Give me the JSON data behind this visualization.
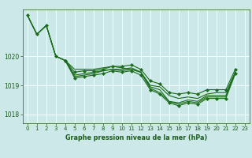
{
  "background_color": "#cce8e8",
  "grid_color": "#ffffff",
  "line_color": "#1a6b1a",
  "marker_color": "#1a6b1a",
  "xlabel": "Graphe pression niveau de la mer (hPa)",
  "xlabel_color": "#1a5c1a",
  "tick_color": "#1a5c1a",
  "ylim": [
    1017.7,
    1021.6
  ],
  "xlim": [
    -0.5,
    23.5
  ],
  "yticks": [
    1018,
    1019,
    1020
  ],
  "xticks": [
    0,
    1,
    2,
    3,
    4,
    5,
    6,
    7,
    8,
    9,
    10,
    11,
    12,
    13,
    14,
    15,
    16,
    17,
    18,
    19,
    20,
    21,
    22,
    23
  ],
  "lines": [
    {
      "x": [
        0,
        1,
        2,
        3,
        4,
        5,
        6,
        7,
        8,
        9,
        10,
        11,
        12,
        13,
        14,
        15,
        16,
        17,
        18,
        19,
        20,
        21,
        22
      ],
      "y": [
        1021.4,
        1020.75,
        1021.05,
        1020.0,
        1019.85,
        1019.55,
        1019.55,
        1019.55,
        1019.6,
        1019.65,
        1019.6,
        1019.55,
        1019.45,
        1019.0,
        1018.95,
        1018.65,
        1018.55,
        1018.6,
        1018.55,
        1018.7,
        1018.75,
        1018.75,
        1019.45
      ],
      "marker": false
    },
    {
      "x": [
        0,
        1,
        2,
        3,
        4,
        5,
        6,
        7,
        8,
        9,
        10,
        11,
        12,
        13,
        14,
        15,
        16,
        17,
        18,
        19,
        20,
        21,
        22
      ],
      "y": [
        1021.4,
        1020.75,
        1021.05,
        1020.0,
        1019.85,
        1019.45,
        1019.5,
        1019.5,
        1019.55,
        1019.65,
        1019.65,
        1019.7,
        1019.55,
        1019.15,
        1019.05,
        1018.75,
        1018.7,
        1018.75,
        1018.7,
        1018.85,
        1018.85,
        1018.85,
        1019.55
      ],
      "marker": true
    },
    {
      "x": [
        0,
        1,
        2,
        3,
        4,
        5,
        6,
        7,
        8,
        9,
        10,
        11,
        12,
        13,
        14,
        15,
        16,
        17,
        18,
        19,
        20,
        21,
        22
      ],
      "y": [
        1021.4,
        1020.75,
        1021.05,
        1020.0,
        1019.85,
        1019.35,
        1019.4,
        1019.45,
        1019.5,
        1019.55,
        1019.55,
        1019.6,
        1019.45,
        1018.95,
        1018.85,
        1018.45,
        1018.4,
        1018.5,
        1018.45,
        1018.65,
        1018.65,
        1018.65,
        1019.45
      ],
      "marker": false
    },
    {
      "x": [
        0,
        1,
        2,
        3,
        4,
        5,
        6,
        7,
        8,
        9,
        10,
        11,
        12,
        13,
        14,
        15,
        16,
        17,
        18,
        19,
        20,
        21,
        22
      ],
      "y": [
        1021.4,
        1020.75,
        1021.05,
        1020.0,
        1019.85,
        1019.3,
        1019.35,
        1019.4,
        1019.5,
        1019.55,
        1019.5,
        1019.55,
        1019.45,
        1018.9,
        1018.75,
        1018.45,
        1018.35,
        1018.45,
        1018.4,
        1018.6,
        1018.6,
        1018.6,
        1019.45
      ],
      "marker": false
    },
    {
      "x": [
        4,
        5,
        6,
        7,
        8,
        9,
        10,
        11,
        12,
        13,
        14,
        15,
        16,
        17,
        18,
        19,
        20,
        21,
        22
      ],
      "y": [
        1019.85,
        1019.25,
        1019.3,
        1019.35,
        1019.4,
        1019.5,
        1019.45,
        1019.5,
        1019.35,
        1018.85,
        1018.7,
        1018.4,
        1018.3,
        1018.4,
        1018.35,
        1018.55,
        1018.55,
        1018.55,
        1019.4
      ],
      "marker": true
    }
  ]
}
